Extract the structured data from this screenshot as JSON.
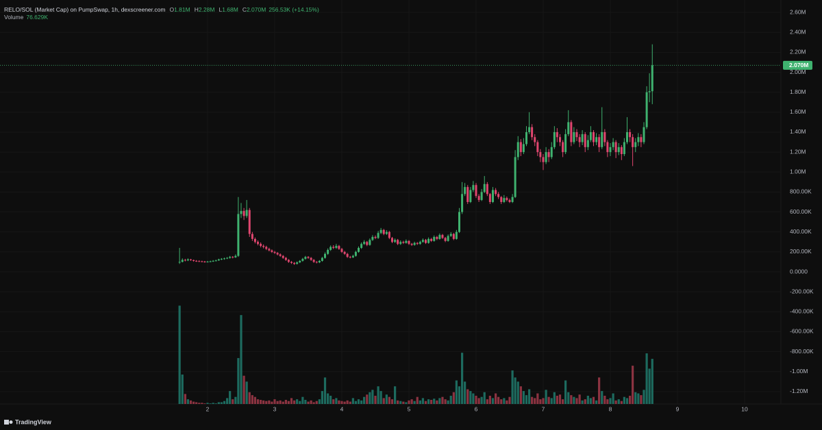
{
  "chart_data": {
    "type": "candlestick",
    "legend": {
      "title": "RELO/SOL (Market Cap) on PumpSwap, 1h, dexscreener.com",
      "ohlc": [
        {
          "label": "O",
          "value": "1.81M"
        },
        {
          "label": "H",
          "value": "2.28M"
        },
        {
          "label": "L",
          "value": "1.68M"
        },
        {
          "label": "C",
          "value": "2.070M"
        }
      ],
      "change": "256.53K (+14.15%)",
      "volume_label": "Volume",
      "volume_value": "76.629K"
    },
    "last_price_label": "2.070M",
    "branding": "TradingView",
    "up_color": "#3fb26f",
    "down_color": "#e0466f",
    "volume_up_color": "#1d6b5f",
    "volume_down_color": "#8c3341",
    "grid": true,
    "xlim": [
      -1.092,
      10.541
    ],
    "xticks": [
      2,
      3,
      4,
      5,
      6,
      7,
      8,
      9,
      10
    ],
    "ylim": [
      -1324000,
      2724000
    ],
    "yticks": [
      {
        "value": 2600000,
        "label": "2.60M"
      },
      {
        "value": 2400000,
        "label": "2.40M"
      },
      {
        "value": 2200000,
        "label": "2.20M"
      },
      {
        "value": 2000000,
        "label": "2.00M"
      },
      {
        "value": 1800000,
        "label": "1.80M"
      },
      {
        "value": 1600000,
        "label": "1.60M"
      },
      {
        "value": 1400000,
        "label": "1.40M"
      },
      {
        "value": 1200000,
        "label": "1.20M"
      },
      {
        "value": 1000000,
        "label": "1.00M"
      },
      {
        "value": 800000,
        "label": "800.00K"
      },
      {
        "value": 600000,
        "label": "600.00K"
      },
      {
        "value": 400000,
        "label": "400.00K"
      },
      {
        "value": 200000,
        "label": "200.00K"
      },
      {
        "value": 0,
        "label": "0.0000"
      },
      {
        "value": -200000,
        "label": "-200.00K"
      },
      {
        "value": -400000,
        "label": "-400.00K"
      },
      {
        "value": -600000,
        "label": "-600.00K"
      },
      {
        "value": -800000,
        "label": "-800.00K"
      },
      {
        "value": -1000000,
        "label": "-1.00M"
      },
      {
        "value": -1200000,
        "label": "-1.20M"
      }
    ],
    "volume_lim": [
      0,
      500000
    ],
    "x": [
      1.583,
      1.625,
      1.667,
      1.708,
      1.75,
      1.792,
      1.833,
      1.875,
      1.917,
      1.958,
      2,
      2.042,
      2.083,
      2.125,
      2.167,
      2.208,
      2.25,
      2.292,
      2.333,
      2.375,
      2.417,
      2.458,
      2.5,
      2.542,
      2.583,
      2.625,
      2.667,
      2.708,
      2.75,
      2.792,
      2.833,
      2.875,
      2.917,
      2.958,
      3,
      3.042,
      3.083,
      3.125,
      3.167,
      3.208,
      3.25,
      3.292,
      3.333,
      3.375,
      3.417,
      3.458,
      3.5,
      3.542,
      3.583,
      3.625,
      3.667,
      3.708,
      3.75,
      3.792,
      3.833,
      3.875,
      3.917,
      3.958,
      4,
      4.042,
      4.083,
      4.125,
      4.167,
      4.208,
      4.25,
      4.292,
      4.333,
      4.375,
      4.417,
      4.458,
      4.5,
      4.542,
      4.583,
      4.625,
      4.667,
      4.708,
      4.75,
      4.792,
      4.833,
      4.875,
      4.917,
      4.958,
      5,
      5.042,
      5.083,
      5.125,
      5.167,
      5.208,
      5.25,
      5.292,
      5.333,
      5.375,
      5.417,
      5.458,
      5.5,
      5.542,
      5.583,
      5.625,
      5.667,
      5.708,
      5.75,
      5.792,
      5.833,
      5.875,
      5.917,
      5.958,
      6,
      6.042,
      6.083,
      6.125,
      6.167,
      6.208,
      6.25,
      6.292,
      6.333,
      6.375,
      6.417,
      6.458,
      6.5,
      6.542,
      6.583,
      6.625,
      6.667,
      6.708,
      6.75,
      6.792,
      6.833,
      6.875,
      6.917,
      6.958,
      7,
      7.042,
      7.083,
      7.125,
      7.167,
      7.208,
      7.25,
      7.292,
      7.333,
      7.375,
      7.417,
      7.458,
      7.5,
      7.542,
      7.583,
      7.625,
      7.667,
      7.708,
      7.75,
      7.792,
      7.833,
      7.875,
      7.917,
      7.958,
      8,
      8.042,
      8.083,
      8.125,
      8.167,
      8.208,
      8.25,
      8.292,
      8.333,
      8.375,
      8.417,
      8.458,
      8.5,
      8.542,
      8.583,
      8.625
    ],
    "open": [
      95000,
      100000,
      120000,
      115000,
      125000,
      118000,
      110000,
      108000,
      105000,
      103000,
      100000,
      102000,
      105000,
      110000,
      115000,
      125000,
      130000,
      135000,
      140000,
      150000,
      145000,
      160000,
      580000,
      610000,
      560000,
      620000,
      380000,
      330000,
      300000,
      280000,
      260000,
      250000,
      230000,
      215000,
      200000,
      190000,
      175000,
      160000,
      140000,
      120000,
      100000,
      90000,
      80000,
      95000,
      110000,
      130000,
      150000,
      140000,
      120000,
      100000,
      95000,
      110000,
      140000,
      180000,
      220000,
      250000,
      240000,
      260000,
      230000,
      200000,
      180000,
      150000,
      145000,
      160000,
      200000,
      240000,
      280000,
      300000,
      270000,
      320000,
      350000,
      340000,
      390000,
      420000,
      380000,
      400000,
      340000,
      300000,
      320000,
      280000,
      300000,
      290000,
      310000,
      280000,
      270000,
      290000,
      280000,
      300000,
      320000,
      290000,
      330000,
      310000,
      350000,
      330000,
      370000,
      340000,
      310000,
      360000,
      380000,
      330000,
      400000,
      600000,
      780000,
      850000,
      700000,
      820000,
      870000,
      760000,
      720000,
      800000,
      880000,
      780000,
      700000,
      820000,
      780000,
      750000,
      700000,
      740000,
      720000,
      700000,
      750000,
      1150000,
      1300000,
      1200000,
      1280000,
      1400000,
      1450000,
      1350000,
      1300000,
      1200000,
      1150000,
      1100000,
      1200000,
      1150000,
      1250000,
      1400000,
      1350000,
      1300000,
      1200000,
      1380000,
      1500000,
      1300000,
      1400000,
      1350000,
      1300000,
      1380000,
      1250000,
      1320000,
      1400000,
      1300000,
      1350000,
      1250000,
      1400000,
      1300000,
      1200000,
      1250000,
      1300000,
      1200000,
      1250000,
      1180000,
      1300000,
      1400000,
      1350000,
      1250000,
      1300000,
      1350000,
      1300000,
      1450000,
      1800000,
      1810000
    ],
    "high": [
      240000,
      135000,
      130000,
      135000,
      130000,
      122000,
      118000,
      115000,
      112000,
      110000,
      110000,
      112000,
      118000,
      122000,
      132000,
      138000,
      142000,
      148000,
      160000,
      158000,
      175000,
      750000,
      690000,
      640000,
      720000,
      640000,
      400000,
      345000,
      315000,
      295000,
      275000,
      262000,
      242000,
      225000,
      210000,
      198000,
      185000,
      168000,
      150000,
      128000,
      108000,
      98000,
      105000,
      118000,
      140000,
      160000,
      158000,
      148000,
      128000,
      108000,
      118000,
      150000,
      195000,
      235000,
      265000,
      268000,
      280000,
      270000,
      240000,
      210000,
      190000,
      160000,
      172000,
      212000,
      255000,
      295000,
      318000,
      310000,
      335000,
      368000,
      365000,
      410000,
      440000,
      430000,
      418000,
      410000,
      350000,
      335000,
      330000,
      315000,
      312000,
      325000,
      318000,
      290000,
      302000,
      298000,
      312000,
      335000,
      330000,
      345000,
      340000,
      365000,
      360000,
      385000,
      380000,
      350000,
      375000,
      398000,
      390000,
      420000,
      640000,
      900000,
      890000,
      870000,
      850000,
      910000,
      890000,
      780000,
      830000,
      960000,
      900000,
      790000,
      850000,
      840000,
      800000,
      760000,
      770000,
      755000,
      735000,
      780000,
      1220000,
      1360000,
      1330000,
      1340000,
      1460000,
      1600000,
      1480000,
      1380000,
      1320000,
      1230000,
      1180000,
      1250000,
      1230000,
      1300000,
      1460000,
      1440000,
      1380000,
      1320000,
      1430000,
      1620000,
      1520000,
      1450000,
      1430000,
      1380000,
      1420000,
      1400000,
      1370000,
      1460000,
      1420000,
      1390000,
      1380000,
      1650000,
      1430000,
      1320000,
      1290000,
      1340000,
      1320000,
      1290000,
      1270000,
      1340000,
      1550000,
      1430000,
      1380000,
      1340000,
      1390000,
      1380000,
      1500000,
      1860000,
      1990000,
      2280000
    ],
    "low": [
      80000,
      95000,
      105000,
      108000,
      110000,
      102000,
      100000,
      98000,
      96000,
      92000,
      94000,
      96000,
      100000,
      104000,
      110000,
      118000,
      122000,
      128000,
      132000,
      135000,
      140000,
      150000,
      540000,
      520000,
      540000,
      350000,
      310000,
      285000,
      265000,
      245000,
      235000,
      218000,
      205000,
      190000,
      180000,
      165000,
      150000,
      130000,
      110000,
      90000,
      80000,
      70000,
      74000,
      88000,
      102000,
      122000,
      130000,
      110000,
      90000,
      85000,
      88000,
      102000,
      132000,
      170000,
      210000,
      228000,
      230000,
      220000,
      190000,
      170000,
      140000,
      135000,
      138000,
      152000,
      192000,
      230000,
      270000,
      258000,
      262000,
      310000,
      328000,
      330000,
      378000,
      368000,
      370000,
      328000,
      288000,
      290000,
      268000,
      270000,
      280000,
      282000,
      270000,
      260000,
      262000,
      270000,
      272000,
      292000,
      280000,
      282000,
      300000,
      302000,
      318000,
      322000,
      330000,
      298000,
      302000,
      350000,
      318000,
      322000,
      390000,
      580000,
      760000,
      680000,
      690000,
      800000,
      740000,
      700000,
      710000,
      790000,
      760000,
      680000,
      690000,
      760000,
      730000,
      680000,
      690000,
      705000,
      690000,
      690000,
      740000,
      1120000,
      1160000,
      1180000,
      1260000,
      1380000,
      1320000,
      1260000,
      1160000,
      1100000,
      1020000,
      1080000,
      1100000,
      1130000,
      1230000,
      1300000,
      1260000,
      1150000,
      1180000,
      1360000,
      1260000,
      1280000,
      1310000,
      1250000,
      1270000,
      1200000,
      1220000,
      1300000,
      1260000,
      1270000,
      1200000,
      1230000,
      1260000,
      1150000,
      1160000,
      1220000,
      1140000,
      1170000,
      1120000,
      1160000,
      1280000,
      1300000,
      1060000,
      1200000,
      1260000,
      1250000,
      1280000,
      1430000,
      1700000,
      1680000
    ],
    "close": [
      100000,
      120000,
      115000,
      125000,
      118000,
      110000,
      108000,
      105000,
      103000,
      100000,
      102000,
      105000,
      110000,
      115000,
      125000,
      130000,
      135000,
      140000,
      150000,
      145000,
      160000,
      580000,
      610000,
      560000,
      620000,
      380000,
      330000,
      300000,
      280000,
      260000,
      250000,
      230000,
      215000,
      200000,
      190000,
      175000,
      160000,
      140000,
      120000,
      100000,
      90000,
      80000,
      95000,
      110000,
      130000,
      150000,
      140000,
      120000,
      100000,
      95000,
      110000,
      140000,
      180000,
      220000,
      250000,
      240000,
      260000,
      230000,
      200000,
      180000,
      150000,
      145000,
      160000,
      200000,
      240000,
      280000,
      300000,
      270000,
      320000,
      350000,
      340000,
      390000,
      420000,
      380000,
      400000,
      340000,
      300000,
      320000,
      280000,
      300000,
      290000,
      310000,
      280000,
      270000,
      290000,
      280000,
      300000,
      320000,
      290000,
      330000,
      310000,
      350000,
      330000,
      370000,
      340000,
      310000,
      360000,
      380000,
      330000,
      400000,
      600000,
      780000,
      850000,
      700000,
      820000,
      870000,
      760000,
      720000,
      800000,
      880000,
      780000,
      700000,
      820000,
      780000,
      750000,
      700000,
      740000,
      720000,
      700000,
      750000,
      1150000,
      1300000,
      1200000,
      1280000,
      1400000,
      1450000,
      1350000,
      1300000,
      1200000,
      1150000,
      1100000,
      1200000,
      1150000,
      1250000,
      1400000,
      1350000,
      1300000,
      1200000,
      1380000,
      1500000,
      1300000,
      1400000,
      1350000,
      1300000,
      1380000,
      1250000,
      1320000,
      1400000,
      1300000,
      1350000,
      1250000,
      1400000,
      1300000,
      1200000,
      1250000,
      1300000,
      1200000,
      1250000,
      1180000,
      1300000,
      1400000,
      1350000,
      1250000,
      1300000,
      1350000,
      1300000,
      1450000,
      1800000,
      1810000,
      2070000
    ],
    "volume": [
      167000,
      50000,
      17000,
      8000,
      6000,
      4000,
      3000,
      2000,
      2000,
      1000,
      2000,
      1000,
      2000,
      1000,
      3000,
      3000,
      5000,
      10000,
      22000,
      8000,
      12000,
      78000,
      151000,
      48000,
      38000,
      20000,
      15000,
      12000,
      8000,
      7000,
      6000,
      5000,
      6000,
      4000,
      8000,
      5000,
      6000,
      4000,
      7000,
      5000,
      10000,
      6000,
      8000,
      5000,
      12000,
      7000,
      4000,
      6000,
      3000,
      5000,
      8000,
      22000,
      45000,
      18000,
      14000,
      8000,
      10000,
      6000,
      5000,
      4000,
      6000,
      4000,
      10000,
      5000,
      8000,
      6000,
      12000,
      16000,
      20000,
      24000,
      14000,
      30000,
      22000,
      10000,
      16000,
      12000,
      8000,
      30000,
      6000,
      5000,
      4000,
      3000,
      6000,
      8000,
      5000,
      12000,
      6000,
      10000,
      5000,
      8000,
      7000,
      9000,
      6000,
      10000,
      12000,
      8000,
      6000,
      14000,
      20000,
      40000,
      30000,
      87000,
      38000,
      25000,
      22000,
      18000,
      14000,
      10000,
      12000,
      20000,
      8000,
      14000,
      10000,
      18000,
      12000,
      8000,
      10000,
      6000,
      12000,
      57000,
      45000,
      38000,
      30000,
      22000,
      15000,
      25000,
      12000,
      10000,
      18000,
      8000,
      10000,
      24000,
      12000,
      10000,
      20000,
      14000,
      16000,
      8000,
      40000,
      20000,
      15000,
      12000,
      10000,
      16000,
      6000,
      8000,
      14000,
      10000,
      12000,
      6000,
      45000,
      22000,
      14000,
      8000,
      10000,
      18000,
      6000,
      8000,
      5000,
      12000,
      10000,
      14000,
      65000,
      20000,
      18000,
      15000,
      24000,
      86000,
      60000,
      76629
    ]
  }
}
